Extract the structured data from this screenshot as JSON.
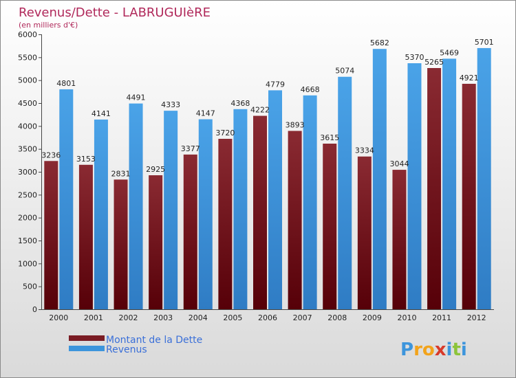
{
  "chart_data": {
    "type": "bar",
    "title": "Revenus/Dette - LABRUGUIèRE",
    "subtitle": "(en milliers d'€)",
    "categories": [
      "2000",
      "2001",
      "2002",
      "2003",
      "2004",
      "2005",
      "2006",
      "2007",
      "2008",
      "2009",
      "2010",
      "2011",
      "2012"
    ],
    "series": [
      {
        "name": "Montant de la Dette",
        "color": "#7a1c24",
        "values": [
          3236,
          3153,
          2831,
          2925,
          3377,
          3720,
          4222,
          3893,
          3615,
          3334,
          3044,
          5265,
          4921
        ],
        "labels": [
          "3236",
          "3153",
          "2831",
          "2925",
          "3377",
          "3720",
          "4222",
          "3893",
          "3615",
          "3334",
          "3044",
          "5265",
          "4921"
        ]
      },
      {
        "name": "Revenus",
        "color": "#3d95dc",
        "values": [
          4801,
          4141,
          4491,
          4333,
          4147,
          4368,
          4779,
          4668,
          5074,
          5682,
          5370,
          5469,
          5701
        ],
        "labels": [
          "4801",
          "4141",
          "4491",
          "4333",
          "4147",
          "4368",
          "4779",
          "4668",
          "5074",
          "5682",
          "5370",
          "5469",
          "5701"
        ]
      }
    ],
    "yticks": [
      "0",
      "500",
      "1000",
      "1500",
      "2000",
      "2500",
      "3000",
      "3500",
      "4000",
      "4500",
      "5000",
      "5500",
      "6000"
    ],
    "ylim": [
      0,
      6000
    ],
    "grid": false,
    "legend_position": "bottom-left"
  },
  "legend": [
    {
      "label": "Montant de la Dette",
      "color": "#7a1c24"
    },
    {
      "label": "Revenus",
      "color": "#3d95dc"
    }
  ],
  "brand": {
    "letters": [
      "P",
      "r",
      "o",
      "x",
      "i",
      "t",
      "i"
    ],
    "colors": [
      "#3d95dc",
      "#f2a31b",
      "#f2a31b",
      "#d83a2a",
      "#3d95dc",
      "#8cc43a",
      "#3d95dc"
    ]
  }
}
